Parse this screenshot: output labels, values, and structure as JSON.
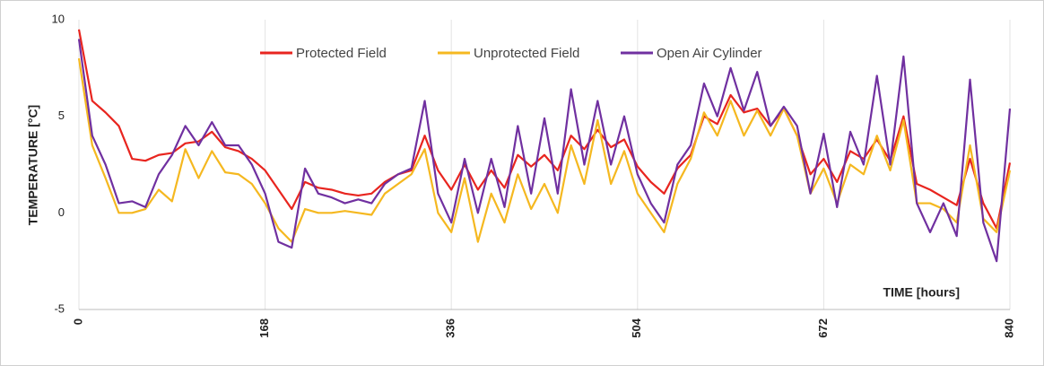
{
  "chart_data": {
    "type": "line",
    "x_label": "TIME [hours]",
    "y_label": "TEMPERATURE [°C]",
    "x": [
      0,
      12,
      24,
      36,
      48,
      60,
      72,
      84,
      96,
      108,
      120,
      132,
      144,
      156,
      168,
      180,
      192,
      204,
      216,
      228,
      240,
      252,
      264,
      276,
      288,
      300,
      312,
      324,
      336,
      348,
      360,
      372,
      384,
      396,
      408,
      420,
      432,
      444,
      456,
      468,
      480,
      492,
      504,
      516,
      528,
      540,
      552,
      564,
      576,
      588,
      600,
      612,
      624,
      636,
      648,
      660,
      672,
      684,
      696,
      708,
      720,
      732,
      744,
      756,
      768,
      780,
      792,
      804,
      816,
      828,
      840
    ],
    "series": [
      {
        "name": "Protected Field",
        "color": "#e8251f",
        "values": [
          9.5,
          5.8,
          5.2,
          4.5,
          2.8,
          2.7,
          3.0,
          3.1,
          3.6,
          3.7,
          4.2,
          3.4,
          3.2,
          2.8,
          2.2,
          1.2,
          0.2,
          1.6,
          1.3,
          1.2,
          1.0,
          0.9,
          1.0,
          1.6,
          2.0,
          2.2,
          4.0,
          2.2,
          1.2,
          2.5,
          1.2,
          2.2,
          1.3,
          3.0,
          2.4,
          3.0,
          2.2,
          4.0,
          3.3,
          4.3,
          3.4,
          3.8,
          2.4,
          1.6,
          1.0,
          2.3,
          3.0,
          5.0,
          4.6,
          6.1,
          5.2,
          5.4,
          4.5,
          5.4,
          4.0,
          2.0,
          2.8,
          1.6,
          3.2,
          2.8,
          3.8,
          2.7,
          5.0,
          1.5,
          1.2,
          0.8,
          0.4,
          2.8,
          0.5,
          -0.8,
          2.6
        ]
      },
      {
        "name": "Unprotected Field",
        "color": "#f5b820",
        "values": [
          8.0,
          3.5,
          1.8,
          0.0,
          0.0,
          0.2,
          1.2,
          0.6,
          3.3,
          1.8,
          3.2,
          2.1,
          2.0,
          1.5,
          0.5,
          -0.8,
          -1.5,
          0.2,
          0.0,
          0.0,
          0.1,
          0.0,
          -0.1,
          1.0,
          1.5,
          2.0,
          3.3,
          0.0,
          -1.0,
          1.8,
          -1.5,
          1.0,
          -0.5,
          2.0,
          0.2,
          1.5,
          0.0,
          3.5,
          1.5,
          4.8,
          1.5,
          3.2,
          1.0,
          0.0,
          -1.0,
          1.5,
          2.8,
          5.2,
          4.0,
          5.8,
          4.0,
          5.3,
          4.0,
          5.4,
          4.0,
          1.0,
          2.3,
          0.5,
          2.5,
          2.0,
          4.0,
          2.2,
          4.8,
          0.5,
          0.5,
          0.2,
          -0.5,
          3.5,
          -0.3,
          -1.0,
          2.2
        ]
      },
      {
        "name": "Open Air Cylinder",
        "color": "#7030a0",
        "values": [
          9.0,
          4.0,
          2.5,
          0.5,
          0.6,
          0.3,
          2.0,
          3.0,
          4.5,
          3.5,
          4.7,
          3.5,
          3.5,
          2.5,
          1.0,
          -1.5,
          -1.8,
          2.3,
          1.0,
          0.8,
          0.5,
          0.7,
          0.5,
          1.5,
          2.0,
          2.3,
          5.8,
          1.0,
          -0.5,
          2.8,
          0.0,
          2.8,
          0.3,
          4.5,
          1.0,
          4.9,
          1.0,
          6.4,
          2.5,
          5.8,
          2.5,
          5.0,
          2.0,
          0.5,
          -0.5,
          2.5,
          3.5,
          6.7,
          5.0,
          7.5,
          5.3,
          7.3,
          4.5,
          5.5,
          4.5,
          1.0,
          4.1,
          0.3,
          4.2,
          2.5,
          7.1,
          2.5,
          8.1,
          0.5,
          -1.0,
          0.5,
          -1.2,
          6.9,
          -0.5,
          -2.5,
          5.4
        ]
      }
    ],
    "xlim": [
      0,
      840
    ],
    "xticks": [
      0,
      168,
      336,
      504,
      672,
      840
    ],
    "ylim": [
      -5,
      10
    ],
    "yticks": [
      -5,
      0,
      5,
      10
    ],
    "grid": true,
    "legend": "top"
  }
}
